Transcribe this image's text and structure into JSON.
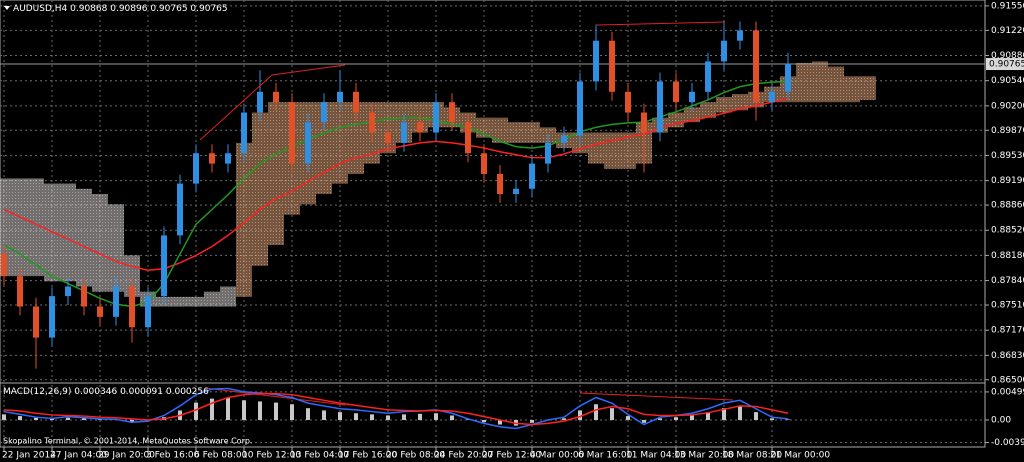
{
  "chart_data": [
    {
      "type": "candlestick",
      "symbol": "AUDUSD,H4",
      "quote": [
        0.90868,
        0.90896,
        0.90765,
        0.90765
      ],
      "last_price": 0.90765,
      "categories": [
        "22 Jan 2014",
        null,
        null,
        "27 Jan 04:00",
        null,
        null,
        "29 Jan 20:00",
        null,
        null,
        "3 Feb 16:00",
        null,
        null,
        "6 Feb 08:00",
        null,
        null,
        "10 Feb 12:00",
        null,
        null,
        "13 Feb 04:00",
        null,
        null,
        "17 Feb 16:00",
        null,
        null,
        "20 Feb 08:00",
        null,
        null,
        "24 Feb 20:00",
        null,
        null,
        "27 Feb 12:00",
        null,
        null,
        "4 Mar 00:00",
        null,
        null,
        "6 Mar 16:00",
        null,
        null,
        "11 Mar 04:00",
        null,
        null,
        "13 Mar 20:00",
        null,
        null,
        "18 Mar 08:00",
        null,
        null,
        "21 Mar 00:00",
        null,
        null,
        null,
        null,
        null,
        null
      ],
      "open": [
        0.882,
        0.879,
        0.8749,
        0.8707,
        0.8763,
        0.8776,
        0.8749,
        0.8735,
        0.8776,
        0.8721,
        0.8763,
        0.8845,
        0.8915,
        0.8956,
        0.8942,
        0.8956,
        0.9011,
        0.9039,
        0.9025,
        0.8942,
        0.8998,
        0.9025,
        0.9039,
        0.9011,
        0.8984,
        0.897,
        0.8998,
        0.8984,
        0.9025,
        0.8998,
        0.8956,
        0.8928,
        0.8901,
        0.8908,
        0.8942,
        0.897,
        0.898,
        0.9053,
        0.9108,
        0.9039,
        0.9011,
        0.8984,
        0.9053,
        0.9025,
        0.9039,
        0.908,
        0.9108,
        0.9122,
        0.9025,
        0.9039,
        null,
        null,
        null,
        null,
        null
      ],
      "high": [
        0.8832,
        0.8802,
        0.8761,
        0.8775,
        0.8788,
        0.8788,
        0.8761,
        0.8788,
        0.8788,
        0.8775,
        0.8857,
        0.8927,
        0.8968,
        0.8968,
        0.8968,
        0.9023,
        0.9068,
        0.9051,
        0.9037,
        0.901,
        0.9037,
        0.9068,
        0.9051,
        0.9023,
        0.8996,
        0.901,
        0.901,
        0.9037,
        0.9037,
        0.901,
        0.8968,
        0.894,
        0.892,
        0.8954,
        0.8982,
        0.8992,
        0.9065,
        0.913,
        0.912,
        0.9051,
        0.9023,
        0.9065,
        0.9065,
        0.9051,
        0.9092,
        0.9135,
        0.9134,
        0.9134,
        0.9051,
        0.9092,
        null,
        null,
        null,
        null,
        null
      ],
      "low": [
        0.8778,
        0.8737,
        0.8665,
        0.8695,
        0.8751,
        0.8737,
        0.8723,
        0.8723,
        0.87,
        0.8709,
        0.8751,
        0.8833,
        0.8903,
        0.893,
        0.893,
        0.8944,
        0.8999,
        0.9013,
        0.893,
        0.893,
        0.8986,
        0.9013,
        0.8999,
        0.8972,
        0.8958,
        0.8958,
        0.8972,
        0.8972,
        0.8986,
        0.8944,
        0.8916,
        0.8889,
        0.8889,
        0.8896,
        0.893,
        0.8958,
        0.8968,
        0.9041,
        0.9027,
        0.8999,
        0.893,
        0.8972,
        0.9013,
        0.9013,
        0.9027,
        0.9068,
        0.9096,
        0.9,
        0.9013,
        0.9027,
        null,
        null,
        null,
        null,
        null
      ],
      "close": [
        0.879,
        0.8749,
        0.8707,
        0.8763,
        0.8776,
        0.8749,
        0.8735,
        0.8776,
        0.8721,
        0.8763,
        0.8845,
        0.8915,
        0.8956,
        0.8942,
        0.8956,
        0.9011,
        0.9039,
        0.9025,
        0.8942,
        0.8998,
        0.9025,
        0.9039,
        0.9011,
        0.8984,
        0.897,
        0.8998,
        0.8984,
        0.9025,
        0.8998,
        0.8956,
        0.8928,
        0.8901,
        0.8908,
        0.8942,
        0.897,
        0.898,
        0.9053,
        0.9108,
        0.9039,
        0.9011,
        0.8984,
        0.9053,
        0.9025,
        0.9039,
        0.908,
        0.9108,
        0.9122,
        0.9025,
        0.9039,
        0.90765,
        null,
        null,
        null,
        null,
        null
      ],
      "up_color": "#2f8fe0",
      "down_color": "#e2502a",
      "lines": [
        {
          "color": "#ff2020",
          "values": [
            0.888,
            0.887,
            0.886,
            0.885,
            0.884,
            0.883,
            0.882,
            0.881,
            0.8803,
            0.8798,
            0.88,
            0.8808,
            0.8818,
            0.883,
            0.8845,
            0.8862,
            0.888,
            0.8895,
            0.8905,
            0.8918,
            0.893,
            0.8942,
            0.895,
            0.8955,
            0.8962,
            0.8966,
            0.897,
            0.8972,
            0.897,
            0.8967,
            0.8963,
            0.8958,
            0.8954,
            0.895,
            0.895,
            0.8955,
            0.8962,
            0.8968,
            0.8973,
            0.8978,
            0.8982,
            0.899,
            0.8996,
            0.9,
            0.9005,
            0.901,
            0.9016,
            0.902,
            0.9025,
            0.903,
            null,
            null,
            null,
            null,
            null
          ]
        },
        {
          "color": "#1f9a1f",
          "values": [
            0.8832,
            0.882,
            0.8805,
            0.879,
            0.878,
            0.877,
            0.876,
            0.8752,
            0.8749,
            0.8755,
            0.878,
            0.882,
            0.886,
            0.888,
            0.89,
            0.8922,
            0.8942,
            0.8955,
            0.8965,
            0.8975,
            0.8983,
            0.8991,
            0.8995,
            0.8999,
            0.9002,
            0.9004,
            0.9004,
            0.9,
            0.8995,
            0.8991,
            0.8982,
            0.8972,
            0.8965,
            0.8963,
            0.8966,
            0.8975,
            0.8985,
            0.8991,
            0.8995,
            0.8997,
            0.8998,
            0.9005,
            0.9012,
            0.902,
            0.9028,
            0.9038,
            0.9046,
            0.905,
            0.9052,
            0.9053,
            null,
            null,
            null,
            null,
            null
          ]
        }
      ],
      "cloud": {
        "span_a": [
          0.879,
          0.879,
          0.879,
          0.8783,
          0.8783,
          0.8776,
          0.8769,
          0.8769,
          0.8762,
          0.8749,
          0.8749,
          0.8749,
          0.8749,
          0.8749,
          0.8749,
          0.897,
          0.9011,
          0.9025,
          0.9025,
          0.9025,
          0.9025,
          0.9025,
          0.9025,
          0.9025,
          0.9025,
          0.9025,
          0.9025,
          0.9025,
          0.9018,
          0.9011,
          0.9004,
          0.9004,
          0.8998,
          0.8998,
          0.8991,
          0.8984,
          0.8984,
          0.8984,
          0.8984,
          0.8984,
          0.8998,
          0.9004,
          0.9011,
          0.9018,
          0.9025,
          0.9032,
          0.9036,
          0.9039,
          0.9046,
          0.906,
          0.9078,
          0.908,
          0.9073,
          0.906,
          0.906
        ],
        "span_b": [
          0.8922,
          0.8922,
          0.8922,
          0.8915,
          0.8915,
          0.8908,
          0.8901,
          0.8887,
          0.8818,
          0.8769,
          0.8762,
          0.8762,
          0.8762,
          0.8769,
          0.8776,
          0.8762,
          0.8804,
          0.8832,
          0.8873,
          0.8887,
          0.8901,
          0.8915,
          0.8928,
          0.8942,
          0.8956,
          0.897,
          0.8984,
          0.8991,
          0.8991,
          0.8984,
          0.8977,
          0.897,
          0.897,
          0.897,
          0.897,
          0.8963,
          0.8956,
          0.8942,
          0.8935,
          0.8935,
          0.8942,
          0.8984,
          0.8991,
          0.8998,
          0.9004,
          0.9011,
          0.9014,
          0.9018,
          0.9025,
          0.9025,
          0.9025,
          0.9025,
          0.9025,
          0.9025,
          0.9028
        ],
        "a_above_color": "#d89a70",
        "b_above_color": "#cfc8c8"
      },
      "ylim": [
        0.8647,
        0.9163
      ],
      "yticks": [
        {
          "value": 0.9155,
          "label": "0.91550"
        },
        {
          "value": 0.9122,
          "label": "0.91220"
        },
        {
          "value": 0.9088,
          "label": "0.90880"
        },
        {
          "value": 0.9054,
          "label": "0.90540"
        },
        {
          "value": 0.902,
          "label": "0.90200"
        },
        {
          "value": 0.8987,
          "label": "0.89870"
        },
        {
          "value": 0.8953,
          "label": "0.89530"
        },
        {
          "value": 0.8919,
          "label": "0.89190"
        },
        {
          "value": 0.8886,
          "label": "0.88860"
        },
        {
          "value": 0.8852,
          "label": "0.88520"
        },
        {
          "value": 0.8818,
          "label": "0.88180"
        },
        {
          "value": 0.8784,
          "label": "0.87840"
        },
        {
          "value": 0.8751,
          "label": "0.87510"
        },
        {
          "value": 0.8717,
          "label": "0.87170"
        },
        {
          "value": 0.8683,
          "label": "0.86830"
        },
        {
          "value": 0.865,
          "label": "0.86500"
        }
      ],
      "grid": true
    },
    {
      "type": "macd",
      "title": "MACD(12,26,9)",
      "current": [
        0.000346,
        9.1e-05,
        0.000256
      ],
      "histogram_color": "#c8c8c8",
      "histogram": [
        0.001,
        0.0007,
        0.0004,
        0.0002,
        0.0004,
        0.0003,
        0.0001,
        0.0001,
        -0.0003,
        -0.0001,
        0.0005,
        0.0017,
        0.0031,
        0.0038,
        0.0039,
        0.0035,
        0.0033,
        0.0031,
        0.0028,
        0.0021,
        0.0017,
        0.0014,
        0.0012,
        0.001,
        0.0008,
        0.001,
        0.0011,
        0.0012,
        0.0008,
        0.0001,
        -0.0004,
        -0.0008,
        -0.001,
        -0.0005,
        0.0,
        0.0003,
        0.0017,
        0.0028,
        0.0021,
        0.0007,
        -0.0005,
        0.0003,
        0.0005,
        0.0008,
        0.0014,
        0.0021,
        0.0024,
        0.0014,
        0.0003,
        0.0001,
        null,
        null,
        null,
        null,
        null
      ],
      "lines": [
        {
          "color": "#2a6cff",
          "values": [
            0.0015,
            0.001,
            0.0005,
            0.0003,
            0.0006,
            0.0004,
            0.0002,
            0.0001,
            -0.0004,
            -0.0002,
            0.0008,
            0.0025,
            0.0045,
            0.0055,
            0.0056,
            0.005,
            0.0048,
            0.0045,
            0.004,
            0.003,
            0.0025,
            0.002,
            0.0018,
            0.0015,
            0.0012,
            0.0015,
            0.0016,
            0.0018,
            0.0012,
            0.0002,
            -0.0006,
            -0.0012,
            -0.0015,
            -0.0008,
            0.0,
            0.0005,
            0.0025,
            0.004,
            0.003,
            0.001,
            -0.0008,
            0.0005,
            0.0008,
            0.0012,
            0.002,
            0.003,
            0.0035,
            0.002,
            0.0005,
            0.0002,
            null,
            null,
            null,
            null,
            null
          ]
        },
        {
          "color": "#ff2020",
          "values": [
            0.0018,
            0.0016,
            0.0012,
            0.0009,
            0.0008,
            0.0007,
            0.0005,
            0.0004,
            0.0002,
            0.0,
            0.0002,
            0.0008,
            0.0018,
            0.003,
            0.004,
            0.0045,
            0.0047,
            0.0047,
            0.0045,
            0.004,
            0.0035,
            0.003,
            0.0026,
            0.0022,
            0.0018,
            0.0017,
            0.0016,
            0.0017,
            0.0016,
            0.0012,
            0.0006,
            0.0,
            -0.0006,
            -0.0008,
            -0.0006,
            -0.0002,
            0.0006,
            0.0018,
            0.0024,
            0.002,
            0.001,
            0.0008,
            0.0008,
            0.0009,
            0.0013,
            0.0019,
            0.0025,
            0.0024,
            0.0018,
            0.0012,
            null,
            null,
            null,
            null,
            null
          ]
        }
      ],
      "ylim": [
        -0.0048,
        0.0064
      ],
      "yticks": [
        0.00499,
        {
          "value": 0,
          "label": "0.00"
        },
        -0.00399
      ],
      "grid": true
    }
  ],
  "footer": "Skopalino Terminal, © 2001-2014, MetaQuotes Software Corp."
}
